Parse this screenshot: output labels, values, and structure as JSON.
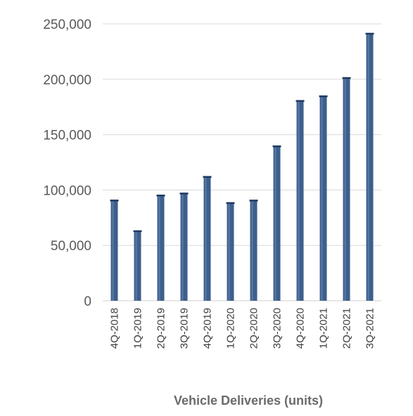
{
  "chart_data": {
    "type": "bar",
    "categories": [
      "4Q-2018",
      "1Q-2019",
      "2Q-2019",
      "3Q-2019",
      "4Q-2019",
      "1Q-2020",
      "2Q-2020",
      "3Q-2020",
      "4Q-2020",
      "1Q-2021",
      "2Q-2021",
      "3Q-2021"
    ],
    "values": [
      90700,
      63000,
      95200,
      97000,
      112000,
      88400,
      90650,
      139600,
      180570,
      184800,
      201300,
      241300
    ],
    "title": "",
    "xlabel": "Vehicle Deliveries (units)",
    "ylabel": "",
    "ylim": [
      0,
      250000
    ],
    "yticks": [
      0,
      50000,
      100000,
      150000,
      200000,
      250000
    ],
    "ytick_labels": [
      "0",
      "50,000",
      "100,000",
      "150,000",
      "200,000",
      "250,000"
    ],
    "grid": true,
    "legend": "none",
    "colors": {
      "bar": "#3d5f8c",
      "bar_highlight": "#5a7aa6",
      "bar_cap": "#1f3a5f"
    }
  }
}
